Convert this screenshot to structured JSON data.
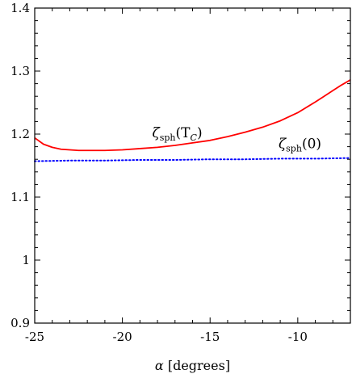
{
  "chart_data": {
    "type": "line",
    "xlabel_symbol": "α",
    "xlabel_unit": "[degrees]",
    "ylabel": "",
    "xlim": [
      -25,
      -7
    ],
    "ylim": [
      0.9,
      1.4
    ],
    "x_ticks": [
      -25,
      -20,
      -15,
      -10
    ],
    "x_tick_labels": [
      "-25",
      "-20",
      "-15",
      "-10"
    ],
    "y_ticks": [
      0.9,
      1.0,
      1.1,
      1.2,
      1.3,
      1.4
    ],
    "y_tick_labels": [
      "0.9",
      "1",
      "1.1",
      "1.2",
      "1.3",
      "1.4"
    ],
    "grid": false,
    "series": [
      {
        "label_main": "ζ",
        "label_sub": "sph",
        "label_arg": "(T",
        "label_arg_sub": "C",
        "label_close": ")",
        "color": "#ff0000",
        "style": "solid",
        "x": [
          -25,
          -24.5,
          -24,
          -23.5,
          -23,
          -22.5,
          -22,
          -21.5,
          -21,
          -20,
          -19,
          -18,
          -17,
          -16,
          -15,
          -14,
          -13,
          -12,
          -11,
          -10,
          -9,
          -8.5,
          -8,
          -7.5,
          -7
        ],
        "y": [
          1.194,
          1.184,
          1.179,
          1.176,
          1.175,
          1.174,
          1.174,
          1.174,
          1.174,
          1.175,
          1.177,
          1.179,
          1.182,
          1.186,
          1.19,
          1.196,
          1.203,
          1.211,
          1.221,
          1.234,
          1.251,
          1.26,
          1.269,
          1.278,
          1.286
        ]
      },
      {
        "label_main": "ζ",
        "label_sub": "sph",
        "label_arg": "(0)",
        "color": "#0000ff",
        "style": "dotted",
        "x": [
          -25,
          -23,
          -21,
          -19,
          -17,
          -15,
          -13,
          -11,
          -9,
          -7
        ],
        "y": [
          1.157,
          1.158,
          1.158,
          1.159,
          1.159,
          1.16,
          1.16,
          1.161,
          1.161,
          1.162
        ]
      }
    ]
  }
}
